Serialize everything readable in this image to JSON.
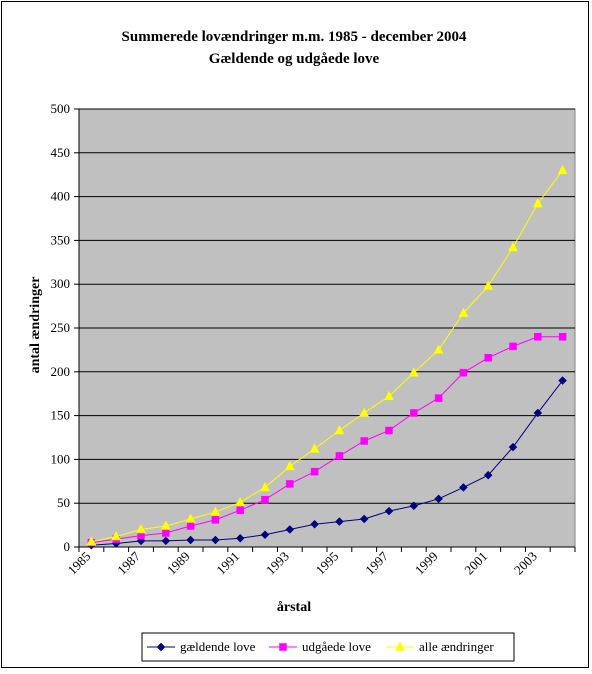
{
  "chart_data": {
    "type": "line",
    "title": "Summerede lovændringer m.m. 1985 - december 2004",
    "subtitle": "Gældende og udgåede love",
    "xlabel": "årstal",
    "ylabel": "antal ændringer",
    "ylim": [
      0,
      500
    ],
    "yticks": [
      "0",
      "50",
      "100",
      "150",
      "200",
      "250",
      "300",
      "350",
      "400",
      "450",
      "500"
    ],
    "xticks": [
      "1985",
      "1987",
      "1989",
      "1991",
      "1993",
      "1995",
      "1997",
      "1999",
      "2001",
      "2003"
    ],
    "x": [
      1985,
      1986,
      1987,
      1988,
      1989,
      1990,
      1991,
      1992,
      1993,
      1994,
      1995,
      1996,
      1997,
      1998,
      1999,
      2000,
      2001,
      2002,
      2003,
      2004
    ],
    "grid": true,
    "plot_background": "#c0c0c0",
    "legend_position": "bottom",
    "series": [
      {
        "name": "gældende love",
        "color": "#000080",
        "marker": "diamond",
        "values": [
          2,
          4,
          7,
          7,
          8,
          8,
          10,
          14,
          20,
          26,
          29,
          32,
          41,
          47,
          55,
          68,
          82,
          114,
          153,
          190
        ]
      },
      {
        "name": "udgåede love",
        "color": "#ff00ff",
        "marker": "square",
        "values": [
          5,
          9,
          13,
          16,
          24,
          31,
          42,
          54,
          72,
          86,
          104,
          121,
          133,
          153,
          170,
          199,
          216,
          229,
          240,
          240
        ]
      },
      {
        "name": "alle ændringer",
        "color": "#ffff00",
        "marker": "triangle",
        "values": [
          6,
          12,
          20,
          24,
          32,
          40,
          51,
          68,
          92,
          112,
          133,
          153,
          172,
          199,
          225,
          267,
          298,
          342,
          392,
          430
        ]
      }
    ]
  }
}
